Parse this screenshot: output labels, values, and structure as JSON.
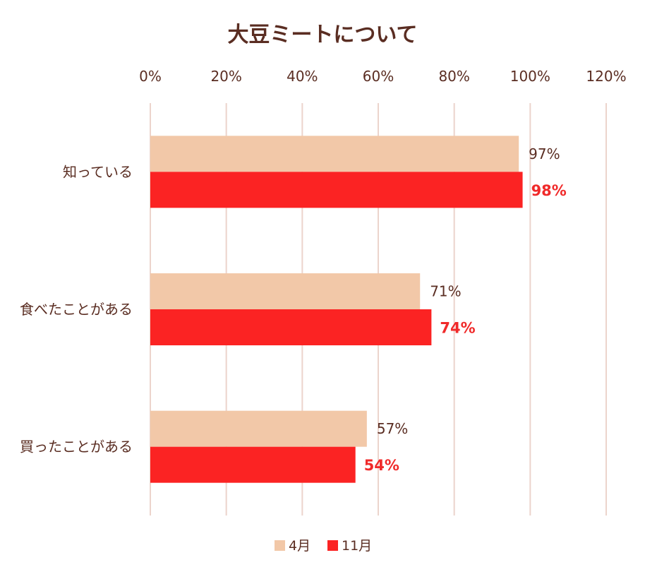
{
  "chart_data": {
    "type": "bar",
    "orientation": "horizontal",
    "title": "大豆ミートについて",
    "categories": [
      "知っている",
      "食べたことがある",
      "買ったことがある"
    ],
    "series": [
      {
        "name": "4月",
        "values": [
          97,
          71,
          57
        ],
        "labels": [
          "97%",
          "71%",
          "57%"
        ],
        "color": "#f2c8a8"
      },
      {
        "name": "11月",
        "values": [
          98,
          74,
          54
        ],
        "labels": [
          "98%",
          "74%",
          "54%"
        ],
        "color": "#fb2323"
      }
    ],
    "xlim": [
      0,
      120
    ],
    "xticks": [
      0,
      20,
      40,
      60,
      80,
      100,
      120
    ],
    "xtick_labels": [
      "0%",
      "20%",
      "40%",
      "60%",
      "80%",
      "100%",
      "120%"
    ],
    "axis_position": "top",
    "grid": true,
    "grid_color": "#ecd4cc",
    "legend_position": "bottom",
    "text_color": "#5a2d22",
    "highlight_label_color": "#f02a2a"
  }
}
